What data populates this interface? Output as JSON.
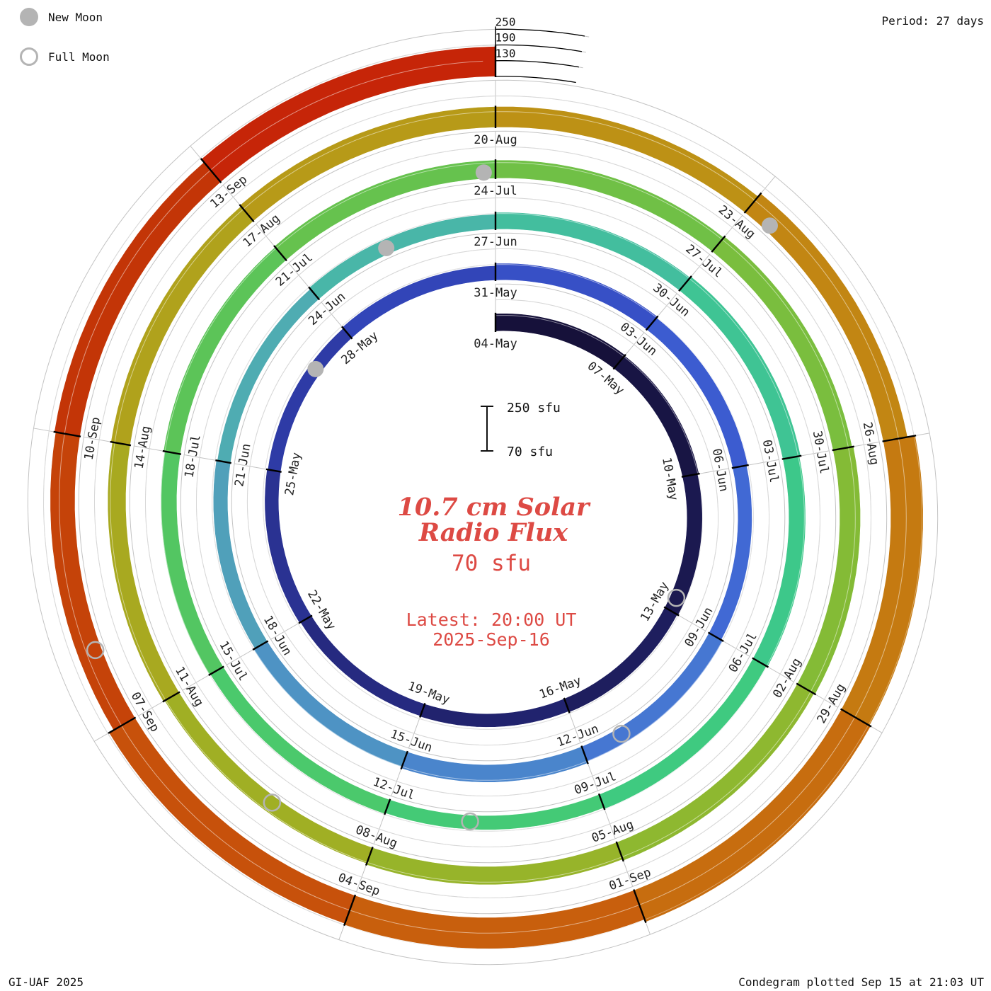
{
  "meta": {
    "period_label": "Period: 27 days",
    "credit": "GI-UAF 2025",
    "plotted": "Condegram plotted Sep 15 at 21:03 UT"
  },
  "legend": {
    "new_moon": "New Moon",
    "full_moon": "Full Moon"
  },
  "center": {
    "title_line1": "10.7 cm Solar",
    "title_line2": "Radio Flux",
    "current_value": "70 sfu",
    "latest_line1": "Latest: 20:00 UT",
    "latest_line2": "2025-Sep-16",
    "scale_top_label": "250 sfu",
    "scale_bottom_label": "70 sfu"
  },
  "chart_data": {
    "type": "spiral_condegram",
    "title": "10.7 cm Solar Radio Flux",
    "units": "sfu",
    "baseline_sfu": 70,
    "radial_ticks_sfu": [
      130,
      190,
      250
    ],
    "period_days": 27,
    "days_per_segment": 3,
    "start_date": "2025-05-04",
    "end_date": "2025-09-15",
    "segments": [
      {
        "label": "04-May",
        "flux": 138,
        "color": "#16113a"
      },
      {
        "label": "07-May",
        "flux": 135,
        "color": "#181544"
      },
      {
        "label": "10-May",
        "flux": 130,
        "color": "#1b1950"
      },
      {
        "label": "13-May",
        "flux": 126,
        "color": "#1e1e5e"
      },
      {
        "label": "16-May",
        "flux": 122,
        "color": "#21236e"
      },
      {
        "label": "19-May",
        "flux": 120,
        "color": "#262a80"
      },
      {
        "label": "22-May",
        "flux": 124,
        "color": "#2a3292"
      },
      {
        "label": "25-May",
        "flux": 121,
        "color": "#2e3ba6"
      },
      {
        "label": "28-May",
        "flux": 126,
        "color": "#3245b8"
      },
      {
        "label": "31-May",
        "flux": 135,
        "color": "#3750c6"
      },
      {
        "label": "03-Jun",
        "flux": 130,
        "color": "#3c5cd0"
      },
      {
        "label": "06-Jun",
        "flux": 125,
        "color": "#4169d4"
      },
      {
        "label": "09-Jun",
        "flux": 132,
        "color": "#4677d2"
      },
      {
        "label": "12-Jun",
        "flux": 138,
        "color": "#4a85cc"
      },
      {
        "label": "15-Jun",
        "flux": 132,
        "color": "#4e93c4"
      },
      {
        "label": "18-Jun",
        "flux": 126,
        "color": "#50a0ba"
      },
      {
        "label": "21-Jun",
        "flux": 122,
        "color": "#4facb2"
      },
      {
        "label": "24-Jun",
        "flux": 128,
        "color": "#49b6a8"
      },
      {
        "label": "27-Jun",
        "flux": 135,
        "color": "#43be9e"
      },
      {
        "label": "30-Jun",
        "flux": 140,
        "color": "#3fc494"
      },
      {
        "label": "03-Jul",
        "flux": 135,
        "color": "#3dc88a"
      },
      {
        "label": "06-Jul",
        "flux": 130,
        "color": "#3fca80"
      },
      {
        "label": "09-Jul",
        "flux": 125,
        "color": "#44ca76"
      },
      {
        "label": "12-Jul",
        "flux": 128,
        "color": "#4bc96c"
      },
      {
        "label": "15-Jul",
        "flux": 132,
        "color": "#53c662"
      },
      {
        "label": "18-Jul",
        "flux": 136,
        "color": "#5cc458"
      },
      {
        "label": "21-Jul",
        "flux": 140,
        "color": "#66c24e"
      },
      {
        "label": "24-Jul",
        "flux": 140,
        "color": "#70c046"
      },
      {
        "label": "27-Jul",
        "flux": 145,
        "color": "#7abe3e"
      },
      {
        "label": "30-Jul",
        "flux": 150,
        "color": "#84bb36"
      },
      {
        "label": "02-Aug",
        "flux": 145,
        "color": "#8eb830"
      },
      {
        "label": "05-Aug",
        "flux": 140,
        "color": "#97b42a"
      },
      {
        "label": "08-Aug",
        "flux": 135,
        "color": "#a0af24"
      },
      {
        "label": "11-Aug",
        "flux": 140,
        "color": "#a8a920"
      },
      {
        "label": "14-Aug",
        "flux": 145,
        "color": "#b0a21c"
      },
      {
        "label": "17-Aug",
        "flux": 150,
        "color": "#b79a18"
      },
      {
        "label": "20-Aug",
        "flux": 150,
        "color": "#bd9115"
      },
      {
        "label": "23-Aug",
        "flux": 165,
        "color": "#c28613"
      },
      {
        "label": "26-Aug",
        "flux": 195,
        "color": "#c57a11"
      },
      {
        "label": "29-Aug",
        "flux": 200,
        "color": "#c76d0f"
      },
      {
        "label": "01-Sep",
        "flux": 190,
        "color": "#c85f0d"
      },
      {
        "label": "04-Sep",
        "flux": 185,
        "color": "#c7510b"
      },
      {
        "label": "07-Sep",
        "flux": 165,
        "color": "#c54309"
      },
      {
        "label": "10-Sep",
        "flux": 170,
        "color": "#c33507"
      },
      {
        "label": "13-Sep",
        "flux": 185,
        "color": "#c62508"
      }
    ],
    "moons": {
      "new": [
        {
          "date": "27-May",
          "t": 23.1
        },
        {
          "date": "25-Jun",
          "t": 52.3
        },
        {
          "date": "24-Jul",
          "t": 80.85
        },
        {
          "date": "23-Aug",
          "t": 111.3
        }
      ],
      "full": [
        {
          "date": "12-May",
          "t": 8.7
        },
        {
          "date": "11-Jun",
          "t": 38.3
        },
        {
          "date": "10-Jul",
          "t": 67.85
        },
        {
          "date": "09-Aug",
          "t": 97.3
        },
        {
          "date": "07-Sep",
          "t": 126.8
        }
      ]
    },
    "styles": {
      "grid_color": "#c3c3c3",
      "moon_color": "#b4b4b4",
      "tick_color": "#000000",
      "accent_red": "#dd4a44"
    }
  }
}
